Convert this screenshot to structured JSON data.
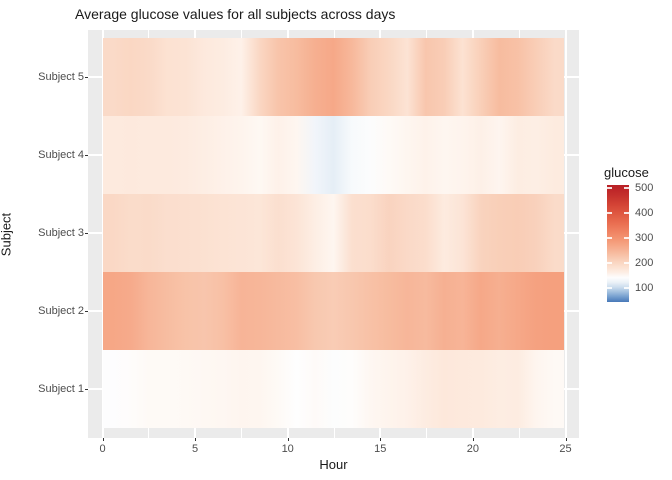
{
  "title": "Average glucose values for all subjects across days",
  "axes": {
    "x_label": "Hour",
    "y_label": "Subject",
    "x_ticks": [
      "0",
      "5",
      "10",
      "15",
      "20",
      "25"
    ],
    "x_tick_hours": [
      0,
      5,
      10,
      15,
      20,
      25
    ],
    "y_ticks": [
      "Subject 5",
      "Subject 4",
      "Subject 3",
      "Subject 2",
      "Subject 1"
    ]
  },
  "legend": {
    "title": "glucose",
    "ticks": [
      "500",
      "400",
      "300",
      "200",
      "100"
    ],
    "tick_values": [
      500,
      400,
      300,
      200,
      100
    ]
  },
  "colors": {
    "panel_bg": "#ebebeb",
    "grid": "#ffffff",
    "tick_label": "#4d4d4d",
    "title_color": "#1a1a1a",
    "high": "#b82026",
    "mid": "#ffffff",
    "low": "#4878b8"
  },
  "chart_data": {
    "type": "heatmap",
    "title": "Average glucose values for all subjects across days",
    "xlabel": "Hour",
    "ylabel": "Subject",
    "xlim": [
      0,
      25
    ],
    "grid": true,
    "legend_position": "right",
    "hours": [
      0,
      1,
      2,
      3,
      4,
      5,
      6,
      7,
      8,
      9,
      10,
      11,
      12,
      13,
      14,
      15,
      16,
      17,
      18,
      19,
      20,
      21,
      22,
      23,
      24
    ],
    "categories": [
      "Subject 5",
      "Subject 4",
      "Subject 3",
      "Subject 2",
      "Subject 1"
    ],
    "series": [
      {
        "name": "Subject 5",
        "values": [
          195,
          200,
          195,
          182,
          180,
          170,
          165,
          158,
          200,
          228,
          240,
          258,
          268,
          245,
          215,
          200,
          180,
          225,
          215,
          182,
          212,
          240,
          232,
          213,
          195
        ]
      },
      {
        "name": "Subject 4",
        "values": [
          168,
          170,
          168,
          168,
          166,
          162,
          158,
          155,
          150,
          158,
          152,
          128,
          118,
          135,
          140,
          148,
          152,
          157,
          152,
          155,
          160,
          153,
          164,
          162,
          167
        ]
      },
      {
        "name": "Subject 3",
        "values": [
          198,
          192,
          194,
          188,
          186,
          184,
          180,
          178,
          175,
          186,
          178,
          162,
          152,
          186,
          190,
          205,
          196,
          190,
          167,
          178,
          206,
          212,
          215,
          208,
          194
        ]
      },
      {
        "name": "Subject 2",
        "values": [
          270,
          265,
          248,
          238,
          230,
          226,
          234,
          250,
          248,
          242,
          236,
          222,
          216,
          224,
          232,
          240,
          248,
          242,
          256,
          250,
          268,
          258,
          268,
          278,
          280
        ]
      },
      {
        "name": "Subject 1",
        "values": [
          142,
          145,
          148,
          148,
          149,
          150,
          151,
          153,
          152,
          148,
          143,
          147,
          141,
          144,
          151,
          155,
          158,
          165,
          172,
          170,
          168,
          164,
          165,
          153,
          149
        ]
      }
    ],
    "color_scale": {
      "min": 44,
      "max": 512,
      "stops": [
        [
          44,
          "#4878b8"
        ],
        [
          70,
          "#7fa8d4"
        ],
        [
          95,
          "#bcd2e8"
        ],
        [
          115,
          "#e2ecf5"
        ],
        [
          132,
          "#f5f8fb"
        ],
        [
          143,
          "#fefefe"
        ],
        [
          152,
          "#fef6f0"
        ],
        [
          165,
          "#fdece1"
        ],
        [
          180,
          "#fce3d4"
        ],
        [
          195,
          "#fadac8"
        ],
        [
          210,
          "#f9d0ba"
        ],
        [
          228,
          "#f8c4aa"
        ],
        [
          245,
          "#f7b89b"
        ],
        [
          262,
          "#f6ac8d"
        ],
        [
          280,
          "#f5a07e"
        ],
        [
          300,
          "#f39270"
        ],
        [
          330,
          "#ef8060"
        ],
        [
          360,
          "#e96d50"
        ],
        [
          395,
          "#e05a42"
        ],
        [
          430,
          "#d44536"
        ],
        [
          465,
          "#c7332d"
        ],
        [
          500,
          "#bb2327"
        ],
        [
          512,
          "#b82026"
        ]
      ]
    }
  }
}
